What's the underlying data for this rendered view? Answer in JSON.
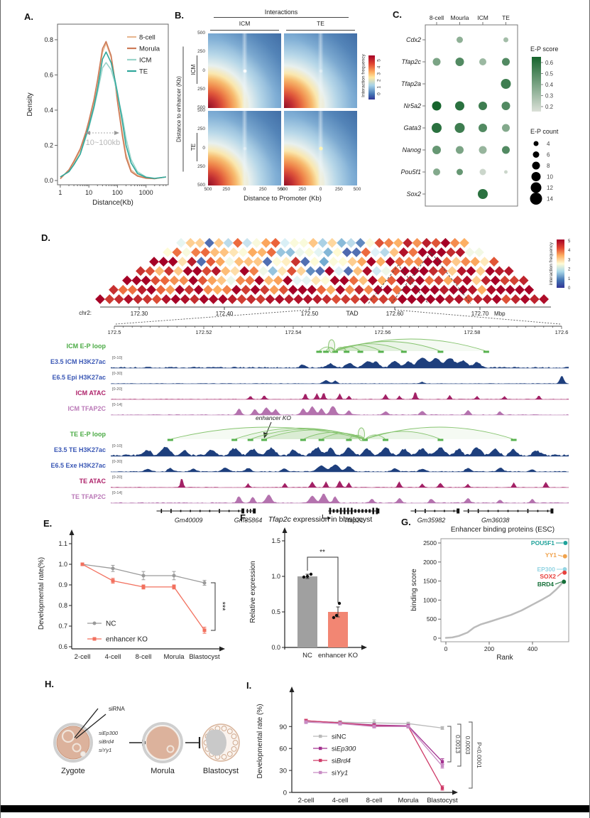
{
  "panels": {
    "a": {
      "label": "A.",
      "xlabel": "Distance(Kb)",
      "ylabel": "Density",
      "annotation": "10~100kb"
    },
    "b": {
      "label": "B.",
      "title": "Interactions",
      "cols": [
        "ICM",
        "TE"
      ],
      "rows": [
        "ICM",
        "TE"
      ],
      "ylabel": "Distance to enhancer (Kb)",
      "xlabel": "Distance to Promoter (Kb)",
      "axis_ticks": [
        "500",
        "250",
        "0",
        "250",
        "500"
      ],
      "colorbar_label": "Interaction frequency",
      "colorbar_ticks": "0 1 2 3 4 5"
    },
    "c": {
      "label": "C."
    },
    "d": {
      "label": "D."
    },
    "e": {
      "label": "E."
    },
    "f": {
      "label": "F."
    },
    "g": {
      "label": "G."
    },
    "h": {
      "label": "H.",
      "injection_label": "siRNA",
      "sirnas": [
        "siEp300",
        "siBrd4",
        "siYy1"
      ],
      "stages": [
        "Zygote",
        "Morula",
        "Blastocyst"
      ]
    },
    "i": {
      "label": "I."
    }
  },
  "chart_data": [
    {
      "panel": "A",
      "type": "line",
      "xlabel": "Distance(Kb)",
      "ylabel": "Density",
      "x_scale": "log",
      "annotation": "10~100kb",
      "x": [
        1,
        2,
        3,
        5,
        8,
        10,
        15,
        20,
        30,
        40,
        60,
        80,
        100,
        150,
        200,
        300,
        500,
        1000,
        2000,
        5000
      ],
      "x_ticks": [
        1,
        10,
        100,
        1000
      ],
      "y_ticks": [
        0.0,
        0.2,
        0.4,
        0.6,
        0.8
      ],
      "ylim": [
        0,
        0.84
      ],
      "series": [
        {
          "name": "8-cell",
          "color": "#e8b893",
          "values": [
            0.01,
            0.06,
            0.1,
            0.17,
            0.28,
            0.33,
            0.45,
            0.56,
            0.73,
            0.78,
            0.7,
            0.57,
            0.46,
            0.27,
            0.15,
            0.06,
            0.03,
            0.015,
            0.01,
            0.02
          ]
        },
        {
          "name": "Morula",
          "color": "#cd7a57",
          "values": [
            0.01,
            0.06,
            0.11,
            0.18,
            0.28,
            0.34,
            0.46,
            0.57,
            0.75,
            0.79,
            0.71,
            0.58,
            0.45,
            0.25,
            0.13,
            0.05,
            0.025,
            0.013,
            0.01,
            0.02
          ]
        },
        {
          "name": "ICM",
          "color": "#9bd4ca",
          "values": [
            0.02,
            0.05,
            0.09,
            0.15,
            0.25,
            0.3,
            0.41,
            0.5,
            0.64,
            0.67,
            0.63,
            0.56,
            0.49,
            0.36,
            0.24,
            0.12,
            0.05,
            0.02,
            0.012,
            0.02
          ]
        },
        {
          "name": "TE",
          "color": "#2fa79b",
          "values": [
            0.02,
            0.05,
            0.09,
            0.15,
            0.26,
            0.31,
            0.42,
            0.52,
            0.69,
            0.73,
            0.67,
            0.58,
            0.5,
            0.33,
            0.2,
            0.1,
            0.04,
            0.018,
            0.012,
            0.02
          ]
        }
      ]
    },
    {
      "panel": "B",
      "type": "heatmap",
      "title": "Interactions",
      "grid_cols": [
        "ICM",
        "TE"
      ],
      "grid_rows": [
        "ICM",
        "TE"
      ],
      "xlabel": "Distance to Promoter (Kb)",
      "ylabel": "Distance to enhancer (Kb)",
      "x_range": [
        -500,
        500
      ],
      "y_range": [
        -500,
        500
      ],
      "axis_ticks": [
        500,
        250,
        0,
        250,
        500
      ],
      "colorbar": {
        "label": "Interaction frequency",
        "range": [
          0,
          5
        ]
      },
      "pattern": "interaction frequency decays with distance; red hotspot toward lower-left corner; bright focal dot at (0,0), strongest in TExTE and ICMxICM"
    },
    {
      "panel": "C",
      "type": "dotplot",
      "columns": [
        "8-cell",
        "Mourla",
        "ICM",
        "TE"
      ],
      "rows": [
        {
          "gene": "Cdx2",
          "score": [
            null,
            0.35,
            null,
            0.3
          ],
          "count": [
            null,
            6,
            null,
            4
          ]
        },
        {
          "gene": "Tfap2c",
          "score": [
            0.4,
            0.5,
            0.32,
            0.5
          ],
          "count": [
            8,
            9,
            7,
            8
          ]
        },
        {
          "gene": "Tfap2a",
          "score": [
            null,
            null,
            null,
            0.55
          ],
          "count": [
            null,
            null,
            null,
            11
          ]
        },
        {
          "gene": "Nr5a2",
          "score": [
            0.65,
            0.6,
            0.55,
            0.5
          ],
          "count": [
            10,
            10,
            9,
            9
          ]
        },
        {
          "gene": "Gata3",
          "score": [
            0.6,
            0.55,
            0.5,
            0.38
          ],
          "count": [
            11,
            11,
            9,
            8
          ]
        },
        {
          "gene": "Nanog",
          "score": [
            0.45,
            0.4,
            0.33,
            0.5
          ],
          "count": [
            9,
            8,
            8,
            8
          ]
        },
        {
          "gene": "Pou5f1",
          "score": [
            0.38,
            0.45,
            0.2,
            0.2
          ],
          "count": [
            7,
            6,
            6,
            2
          ]
        },
        {
          "gene": "Sox2",
          "score": [
            null,
            null,
            0.6,
            null
          ],
          "count": [
            null,
            null,
            11,
            null
          ]
        }
      ],
      "score_legend": {
        "title": "E-P score",
        "ticks": [
          0.6,
          0.5,
          0.4,
          0.3,
          0.2
        ]
      },
      "count_legend": {
        "title": "E-P count",
        "values": [
          4,
          6,
          8,
          10,
          12,
          14
        ]
      }
    },
    {
      "panel": "D",
      "type": "genome-tracks",
      "chrom": "chr2",
      "hic_axis_ticks": [
        "172.30",
        "172.40",
        "172.50",
        "172.60",
        "172.70"
      ],
      "hic_axis_unit": "Mbp",
      "tad_label": "TAD",
      "colorbar": {
        "label": "interaction frequency",
        "ticks": [
          0,
          1,
          2,
          3,
          4,
          5
        ]
      },
      "zoom_ticks": [
        "172.5",
        "172.52",
        "172.54",
        "172.56",
        "172.58",
        "172.6"
      ],
      "enhancer_ko_label": "enhancer KO",
      "track_groups": [
        {
          "tracks": [
            {
              "name": "ICM E-P loop",
              "kind": "loops",
              "color": "#56b14e",
              "label_color": "#4bab45"
            },
            {
              "name": "E3.5 ICM H3K27ac",
              "kind": "signal",
              "range": "[0-10]",
              "color": "#1e3f7d",
              "label_color": "#3a57b5"
            },
            {
              "name": "E6.5 Epi H3K27ac",
              "kind": "signal",
              "range": "[0-30]",
              "color": "#1e3f7d",
              "label_color": "#3a57b5"
            },
            {
              "name": "ICM ATAC",
              "kind": "signal",
              "range": "[0-20]",
              "color": "#a32166",
              "label_color": "#ad1f68"
            },
            {
              "name": "ICM TFAP2C",
              "kind": "signal",
              "range": "[0-14]",
              "color": "#b472ae",
              "label_color": "#bb7ab8"
            }
          ]
        },
        {
          "tracks": [
            {
              "name": "TE E-P loop",
              "kind": "loops",
              "color": "#56b14e",
              "label_color": "#4bab45"
            },
            {
              "name": "E3.5 TE H3K27ac",
              "kind": "signal",
              "range": "[0-10]",
              "color": "#1e3f7d",
              "label_color": "#3a57b5"
            },
            {
              "name": "E6.5 Exe H3K27ac",
              "kind": "signal",
              "range": "[0-30]",
              "color": "#1e3f7d",
              "label_color": "#3a57b5"
            },
            {
              "name": "TE ATAC",
              "kind": "signal",
              "range": "[0-20]",
              "color": "#a32166",
              "label_color": "#ad1f68"
            },
            {
              "name": "TE TFAP2C",
              "kind": "signal",
              "range": "[0-14]",
              "color": "#b472ae",
              "label_color": "#bb7ab8"
            }
          ]
        }
      ],
      "genes": [
        {
          "name": "Gm40009",
          "start": 0.1,
          "end": 0.29,
          "label_x": 0.17,
          "dense": false,
          "arrow": false
        },
        {
          "name": "Gm35864",
          "start": 0.295,
          "end": 0.315,
          "label_x": 0.3,
          "dense": false,
          "arrow": false
        },
        {
          "name": "Tfap2c",
          "start": 0.475,
          "end": 0.585,
          "label_x": 0.53,
          "dense": true,
          "arrow": true
        },
        {
          "name": "Gm35982",
          "start": 0.655,
          "end": 0.76,
          "label_x": 0.7,
          "dense": false,
          "arrow": false
        },
        {
          "name": "Gm36038",
          "start": 0.77,
          "end": 0.965,
          "label_x": 0.84,
          "dense": false,
          "arrow": false
        }
      ]
    },
    {
      "panel": "E",
      "type": "line",
      "ylabel": "Developmental rate(%)",
      "categories": [
        "2-cell",
        "4-cell",
        "8-cell",
        "Morula",
        "Blastocyst"
      ],
      "ylim": [
        0.6,
        1.1
      ],
      "y_ticks": [
        1.1,
        1.0,
        0.9,
        0.8,
        0.7,
        0.6
      ],
      "series": [
        {
          "name": "NC",
          "color": "#9a9a9a",
          "marker": "circle",
          "values": [
            1.0,
            0.98,
            0.945,
            0.945,
            0.91
          ],
          "err": [
            0.005,
            0.015,
            0.02,
            0.02,
            0.012
          ]
        },
        {
          "name": "enhancer KO",
          "color": "#f2705e",
          "marker": "square",
          "values": [
            1.0,
            0.92,
            0.89,
            0.89,
            0.68
          ],
          "err": [
            0.005,
            0.012,
            0.01,
            0.01,
            0.015
          ]
        }
      ],
      "significance": "***"
    },
    {
      "panel": "F",
      "type": "bar",
      "title_italic": "Tfap2c",
      "title_rest": " expression in blastocyst",
      "ylabel": "Relative expression",
      "categories": [
        "NC",
        "enhancer KO"
      ],
      "values": [
        1.0,
        0.5
      ],
      "errors": [
        0.03,
        0.07
      ],
      "colors": [
        "#a0a0a0",
        "#f28673"
      ],
      "points": [
        [
          0.99,
          1.0,
          1.03
        ],
        [
          0.42,
          0.45,
          0.62
        ]
      ],
      "y_ticks": [
        0.0,
        0.5,
        1.0,
        1.5
      ],
      "significance": "**"
    },
    {
      "panel": "G",
      "type": "scatter",
      "title": "Enhancer binding proteins (ESC)",
      "xlabel": "Rank",
      "ylabel": "binding score",
      "x_ticks": [
        0,
        200,
        400
      ],
      "y_ticks": [
        0,
        500,
        1000,
        1500,
        2000,
        2500
      ],
      "curve": [
        [
          0,
          10
        ],
        [
          30,
          20
        ],
        [
          60,
          60
        ],
        [
          100,
          150
        ],
        [
          130,
          280
        ],
        [
          160,
          360
        ],
        [
          200,
          430
        ],
        [
          250,
          520
        ],
        [
          300,
          610
        ],
        [
          350,
          730
        ],
        [
          400,
          880
        ],
        [
          440,
          1000
        ],
        [
          480,
          1130
        ],
        [
          510,
          1280
        ],
        [
          530,
          1400
        ],
        [
          545,
          1520
        ]
      ],
      "highlights": [
        {
          "name": "POU5F1",
          "color": "#1fa29a",
          "rank": 552,
          "score": 2500
        },
        {
          "name": "YY1",
          "color": "#f0a24c",
          "rank": 550,
          "score": 2150
        },
        {
          "name": "EP300",
          "color": "#93d4e3",
          "rank": 549,
          "score": 1810
        },
        {
          "name": "SOX2",
          "color": "#e8413d",
          "rank": 548,
          "score": 1720
        },
        {
          "name": "BRD4",
          "color": "#156f38",
          "rank": 545,
          "score": 1480
        }
      ]
    },
    {
      "panel": "I",
      "type": "line",
      "ylabel": "Developmental rate (%)",
      "categories": [
        "2-cell",
        "4-cell",
        "8-cell",
        "Morula",
        "Blastocyst"
      ],
      "ylim": [
        0,
        100
      ],
      "y_ticks": [
        0,
        30,
        60,
        90
      ],
      "series": [
        {
          "name": "siNC",
          "label_prefix": "si",
          "label_gene": "NC",
          "gene_italic": false,
          "color": "#b9b9b9",
          "values": [
            97,
            96,
            95,
            94,
            88
          ],
          "err": [
            2,
            2,
            4,
            2,
            2
          ]
        },
        {
          "name": "siEp300",
          "label_prefix": "si",
          "label_gene": "Ep300",
          "gene_italic": true,
          "color": "#a2308f",
          "values": [
            98,
            95,
            92,
            91,
            42
          ],
          "err": [
            2,
            2,
            2,
            2,
            4
          ]
        },
        {
          "name": "siBrd4",
          "label_prefix": "si",
          "label_gene": "Brd4",
          "gene_italic": true,
          "color": "#cf3a68",
          "values": [
            98,
            95,
            91,
            90,
            6
          ],
          "err": [
            2,
            2,
            2,
            2,
            3
          ]
        },
        {
          "name": "siYy1",
          "label_prefix": "si",
          "label_gene": "Yy1",
          "gene_italic": true,
          "color": "#c88bc4",
          "values": [
            96,
            94,
            90,
            90,
            36
          ],
          "err": [
            2,
            2,
            2,
            2,
            3
          ]
        }
      ],
      "pvalues": [
        "0.0013",
        "0.0003",
        "P<0.0001"
      ]
    }
  ]
}
